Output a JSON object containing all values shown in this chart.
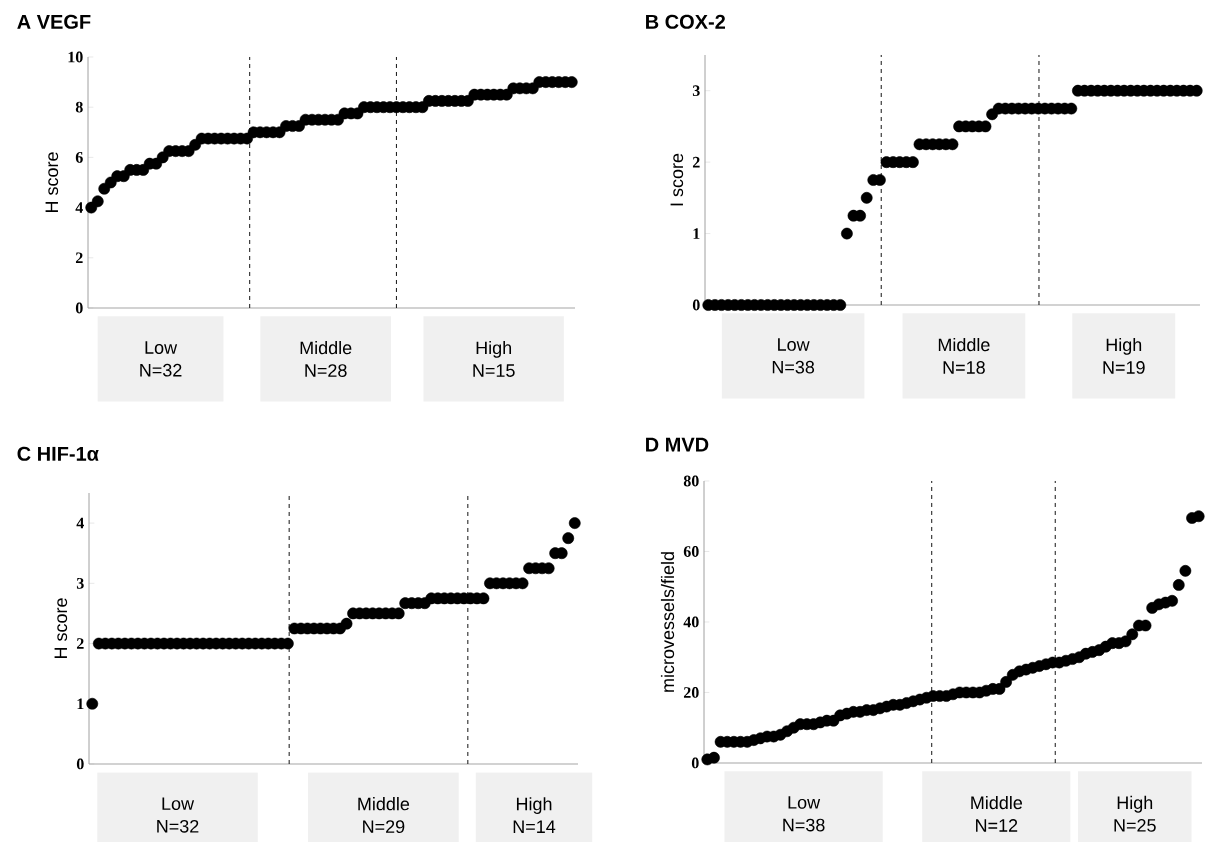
{
  "chart_data": [
    {
      "type": "scatter",
      "title": "A VEGF",
      "ylabel": "H score",
      "color": "#000000",
      "tick_labels": "y",
      "categories": [
        null,
        null,
        null,
        null,
        null,
        null,
        null,
        null,
        null,
        null,
        null,
        null,
        null,
        null,
        null,
        null,
        null,
        null,
        null,
        null,
        null,
        null,
        null,
        null,
        null,
        null,
        null,
        null,
        null,
        null,
        null,
        null,
        null,
        null,
        null,
        null,
        null,
        null,
        null,
        null,
        null,
        null,
        null,
        null,
        null,
        null,
        null,
        null,
        null,
        null,
        null,
        null,
        null,
        null,
        null,
        null,
        null,
        null,
        null,
        null,
        null,
        null,
        null,
        null,
        null,
        null,
        null,
        null,
        null,
        null,
        null,
        null,
        null,
        null,
        null
      ],
      "values": [
        4,
        4.25,
        4.75,
        5,
        5.25,
        5.25,
        5.5,
        5.5,
        5.5,
        5.75,
        5.75,
        6,
        6.25,
        6.25,
        6.25,
        6.25,
        6.5,
        6.75,
        6.75,
        6.75,
        6.75,
        6.75,
        6.75,
        6.75,
        6.75,
        7,
        7,
        7,
        7,
        7,
        7.25,
        7.25,
        7.25,
        7.5,
        7.5,
        7.5,
        7.5,
        7.5,
        7.5,
        7.75,
        7.75,
        7.75,
        8,
        8,
        8,
        8,
        8,
        8,
        8,
        8,
        8,
        8,
        8.25,
        8.25,
        8.25,
        8.25,
        8.25,
        8.25,
        8.25,
        8.5,
        8.5,
        8.5,
        8.5,
        8.5,
        8.5,
        8.75,
        8.75,
        8.75,
        8.75,
        9,
        9,
        9,
        9,
        9,
        9
      ],
      "ylim": [
        0,
        10
      ],
      "yticks": [
        0,
        2,
        4,
        6,
        8,
        10
      ],
      "annotations": [
        "Low",
        "N=32",
        "Middle",
        "N=28",
        "High",
        "N=15"
      ]
    },
    {
      "type": "scatter",
      "title": "B COX-2",
      "ylabel": "I score",
      "color": "#000000",
      "tick_labels": "y",
      "categories": [
        null,
        null,
        null,
        null,
        null,
        null,
        null,
        null,
        null,
        null,
        null,
        null,
        null,
        null,
        null,
        null,
        null,
        null,
        null,
        null,
        null,
        null,
        null,
        null,
        null,
        null,
        null,
        null,
        null,
        null,
        null,
        null,
        null,
        null,
        null,
        null,
        null,
        null,
        null,
        null,
        null,
        null,
        null,
        null,
        null,
        null,
        null,
        null,
        null,
        null,
        null,
        null,
        null,
        null,
        null,
        null,
        null,
        null,
        null,
        null,
        null,
        null,
        null,
        null,
        null,
        null,
        null,
        null,
        null,
        null,
        null,
        null,
        null,
        null,
        null
      ],
      "values": [
        0,
        0,
        0,
        0,
        0,
        0,
        0,
        0,
        0,
        0,
        0,
        0,
        0,
        0,
        0,
        0,
        0,
        0,
        0,
        0,
        0,
        1,
        1.25,
        1.25,
        1.5,
        1.75,
        1.75,
        2,
        2,
        2,
        2,
        2,
        2.25,
        2.25,
        2.25,
        2.25,
        2.25,
        2.25,
        2.5,
        2.5,
        2.5,
        2.5,
        2.5,
        2.67,
        2.75,
        2.75,
        2.75,
        2.75,
        2.75,
        2.75,
        2.75,
        2.75,
        2.75,
        2.75,
        2.75,
        2.75,
        3,
        3,
        3,
        3,
        3,
        3,
        3,
        3,
        3,
        3,
        3,
        3,
        3,
        3,
        3,
        3,
        3,
        3,
        3
      ],
      "ylim": [
        0,
        3.5
      ],
      "yticks": [
        0,
        1,
        2,
        3
      ],
      "annotations": [
        "Low",
        "N=38",
        "Middle",
        "N=18",
        "High",
        "N=19"
      ]
    },
    {
      "type": "scatter",
      "title": "C HIF-1α",
      "ylabel": "H score",
      "color": "#000000",
      "tick_labels": "y",
      "categories": [
        null,
        null,
        null,
        null,
        null,
        null,
        null,
        null,
        null,
        null,
        null,
        null,
        null,
        null,
        null,
        null,
        null,
        null,
        null,
        null,
        null,
        null,
        null,
        null,
        null,
        null,
        null,
        null,
        null,
        null,
        null,
        null,
        null,
        null,
        null,
        null,
        null,
        null,
        null,
        null,
        null,
        null,
        null,
        null,
        null,
        null,
        null,
        null,
        null,
        null,
        null,
        null,
        null,
        null,
        null,
        null,
        null,
        null,
        null,
        null,
        null,
        null,
        null,
        null,
        null,
        null,
        null,
        null,
        null,
        null,
        null,
        null,
        null,
        null,
        null
      ],
      "values": [
        1,
        2,
        2,
        2,
        2,
        2,
        2,
        2,
        2,
        2,
        2,
        2,
        2,
        2,
        2,
        2,
        2,
        2,
        2,
        2,
        2,
        2,
        2,
        2,
        2,
        2,
        2,
        2,
        2,
        2,
        2,
        2.25,
        2.25,
        2.25,
        2.25,
        2.25,
        2.25,
        2.25,
        2.25,
        2.33,
        2.5,
        2.5,
        2.5,
        2.5,
        2.5,
        2.5,
        2.5,
        2.5,
        2.67,
        2.67,
        2.67,
        2.67,
        2.75,
        2.75,
        2.75,
        2.75,
        2.75,
        2.75,
        2.75,
        2.75,
        2.75,
        3,
        3,
        3,
        3,
        3,
        3,
        3.25,
        3.25,
        3.25,
        3.25,
        3.5,
        3.5,
        3.75,
        4
      ],
      "ylim": [
        0,
        4.5
      ],
      "yticks": [
        0,
        1,
        2,
        3,
        4
      ],
      "annotations": [
        "Low",
        "N=32",
        "Middle",
        "N=29",
        "High",
        "N=14"
      ]
    },
    {
      "type": "scatter",
      "title": "D MVD",
      "ylabel": "microvessels/field",
      "color": "#000000",
      "tick_labels": "y",
      "categories": [
        null,
        null,
        null,
        null,
        null,
        null,
        null,
        null,
        null,
        null,
        null,
        null,
        null,
        null,
        null,
        null,
        null,
        null,
        null,
        null,
        null,
        null,
        null,
        null,
        null,
        null,
        null,
        null,
        null,
        null,
        null,
        null,
        null,
        null,
        null,
        null,
        null,
        null,
        null,
        null,
        null,
        null,
        null,
        null,
        null,
        null,
        null,
        null,
        null,
        null,
        null,
        null,
        null,
        null,
        null,
        null,
        null,
        null,
        null,
        null,
        null,
        null,
        null,
        null,
        null,
        null,
        null,
        null,
        null,
        null,
        null,
        null,
        null,
        null,
        null
      ],
      "values": [
        1,
        1.5,
        6,
        6,
        6,
        6,
        6,
        6.5,
        7,
        7.5,
        7.5,
        8,
        9,
        10,
        11,
        11,
        11,
        11.5,
        12,
        12,
        13.5,
        14,
        14.5,
        14.5,
        15,
        15,
        15.5,
        16,
        16.5,
        16.5,
        17,
        17.5,
        18,
        18.5,
        19,
        19,
        19,
        19.5,
        20,
        20,
        20,
        20,
        20.5,
        21,
        21,
        23,
        25,
        26,
        26.5,
        27,
        27.5,
        28,
        28.5,
        28.5,
        29,
        29.5,
        30,
        31,
        31.5,
        32,
        33,
        34,
        34,
        34.5,
        36.5,
        39,
        39,
        44,
        45,
        45.5,
        46,
        50.5,
        54.5,
        69.5,
        70
      ],
      "ylim": [
        0,
        80
      ],
      "yticks": [
        0,
        20,
        40,
        60,
        80
      ],
      "annotations": [
        "Low",
        "N=38",
        "Middle",
        "N=12",
        "High",
        "N=25"
      ]
    }
  ]
}
